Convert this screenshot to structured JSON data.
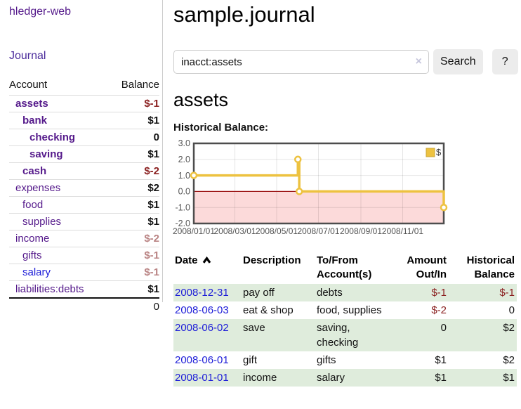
{
  "colors": {
    "link_purple": "#551a8b",
    "link_blue": "#1d1dd8",
    "negative_strong": "#8b2121",
    "negative_soft": "#b98383",
    "row_stripe_green": "#dfecdc",
    "button_gray": "#ececec"
  },
  "sidebar": {
    "brand": "hledger-web",
    "journal_link": "Journal",
    "accounts_table": {
      "col_account": "Account",
      "col_balance": "Balance",
      "rows": [
        {
          "name": "assets",
          "depth": 1,
          "bold": true,
          "balance": "$-1",
          "tone": "neg-strong",
          "link": "purple"
        },
        {
          "name": "bank",
          "depth": 2,
          "bold": true,
          "balance": "$1",
          "tone": "",
          "link": "purple"
        },
        {
          "name": "checking",
          "depth": 3,
          "bold": true,
          "balance": "0",
          "tone": "",
          "link": "purple"
        },
        {
          "name": "saving",
          "depth": 3,
          "bold": true,
          "balance": "$1",
          "tone": "",
          "link": "purple"
        },
        {
          "name": "cash",
          "depth": 2,
          "bold": true,
          "balance": "$-2",
          "tone": "neg-strong",
          "link": "purple"
        },
        {
          "name": "expenses",
          "depth": 1,
          "bold": false,
          "balance": "$2",
          "tone": "",
          "link": "purple"
        },
        {
          "name": "food",
          "depth": 2,
          "bold": false,
          "balance": "$1",
          "tone": "",
          "link": "purple"
        },
        {
          "name": "supplies",
          "depth": 2,
          "bold": false,
          "balance": "$1",
          "tone": "",
          "link": "purple"
        },
        {
          "name": "income",
          "depth": 1,
          "bold": false,
          "balance": "$-2",
          "tone": "neg-soft",
          "link": "purple"
        },
        {
          "name": "gifts",
          "depth": 2,
          "bold": false,
          "balance": "$-1",
          "tone": "neg-soft",
          "link": "purple"
        },
        {
          "name": "salary",
          "depth": 2,
          "bold": false,
          "balance": "$-1",
          "tone": "neg-soft",
          "link": "blue"
        },
        {
          "name": "liabilities:debts",
          "depth": 1,
          "bold": false,
          "balance": "$1",
          "tone": "",
          "link": "purple"
        }
      ],
      "total": "0"
    }
  },
  "main": {
    "title": "sample.journal",
    "search": {
      "value": "inacct:assets",
      "clear_icon": "×",
      "button_label": "Search",
      "help_label": "?"
    },
    "account_heading": "assets",
    "chart_label": "Historical Balance:"
  },
  "chart_data": {
    "type": "line",
    "title": "Historical Balance",
    "step": true,
    "series": [
      {
        "name": "$",
        "color": "#edc240",
        "points": [
          [
            "2008-01-01",
            1
          ],
          [
            "2008-06-01",
            2
          ],
          [
            "2008-06-03",
            0
          ],
          [
            "2008-12-31",
            -1
          ]
        ]
      }
    ],
    "xlim": [
      "2008-01-01",
      "2008-12-31"
    ],
    "ylim": [
      -2,
      3
    ],
    "x_ticks": [
      {
        "date": "2008-01-01",
        "label": "2008/01/01"
      },
      {
        "date": "2008-03-01",
        "label": "2008/03/01"
      },
      {
        "date": "2008-05-01",
        "label": "2008/05/01"
      },
      {
        "date": "2008-07-01",
        "label": "2008/07/01"
      },
      {
        "date": "2008-09-01",
        "label": "2008/09/01"
      },
      {
        "date": "2008-11-01",
        "label": "2008/11/01"
      }
    ],
    "y_ticks": [
      {
        "value": 3,
        "label": "3.0"
      },
      {
        "value": 2,
        "label": "2.0"
      },
      {
        "value": 1,
        "label": "1.0"
      },
      {
        "value": 0,
        "label": "0.0"
      },
      {
        "value": -1,
        "label": "-1.0"
      },
      {
        "value": -2,
        "label": "-2.0"
      }
    ],
    "grid": true,
    "zero_line_color": "#9e1a1a",
    "negative_region_color": "#fcdada",
    "axis_label_color": "#545454",
    "legend": {
      "position": "top-right",
      "label": "$"
    }
  },
  "register_table": {
    "headers": [
      {
        "label": "Date",
        "sort": "ascending"
      },
      {
        "label": "Description"
      },
      {
        "label": "To/From Account(s)"
      },
      {
        "label": "Amount Out/In"
      },
      {
        "label": "Historical Balance"
      }
    ],
    "rows": [
      {
        "date": "2008-12-31",
        "description": "pay off",
        "accounts": "debts",
        "amount": "$-1",
        "amount_tone": "neg",
        "balance": "$-1",
        "balance_tone": "neg"
      },
      {
        "date": "2008-06-03",
        "description": "eat & shop",
        "accounts": "food, supplies",
        "amount": "$-2",
        "amount_tone": "neg",
        "balance": "0",
        "balance_tone": ""
      },
      {
        "date": "2008-06-02",
        "description": "save",
        "accounts": "saving, checking",
        "amount": "0",
        "amount_tone": "",
        "balance": "$2",
        "balance_tone": ""
      },
      {
        "date": "2008-06-01",
        "description": "gift",
        "accounts": "gifts",
        "amount": "$1",
        "amount_tone": "",
        "balance": "$2",
        "balance_tone": ""
      },
      {
        "date": "2008-01-01",
        "description": "income",
        "accounts": "salary",
        "amount": "$1",
        "amount_tone": "",
        "balance": "$1",
        "balance_tone": ""
      }
    ]
  }
}
